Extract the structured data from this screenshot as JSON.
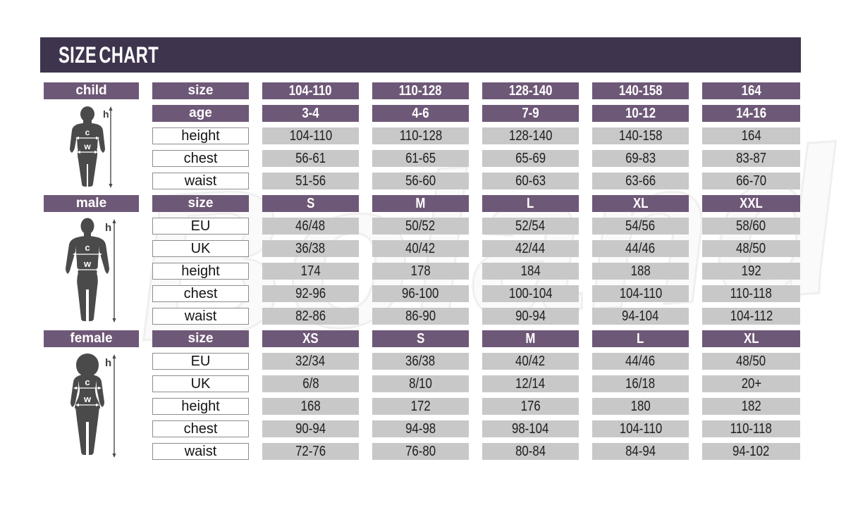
{
  "title": "SIZE CHART",
  "watermark": "Boland",
  "colors": {
    "title_bar": "#3f344e",
    "header_purple": "#6e5877",
    "cell_gray": "#c9c8c8",
    "cell_white_border": "#8d8d8d",
    "silhouette": "#4a4a4a",
    "page_background": "#ffffff",
    "text_dark": "#1e1e1e",
    "text_light": "#ffffff"
  },
  "chart_data": [
    {
      "type": "table",
      "section": "child",
      "figure": {
        "type": "child-silhouette",
        "annotations": {
          "height": "h",
          "chest": "c",
          "waist": "w"
        }
      },
      "rows": [
        {
          "label": "size",
          "style": "header",
          "values": [
            "104-110",
            "110-128",
            "128-140",
            "140-158",
            "164"
          ]
        },
        {
          "label": "age",
          "style": "header",
          "values": [
            "3-4",
            "4-6",
            "7-9",
            "10-12",
            "14-16"
          ]
        },
        {
          "label": "height",
          "style": "data",
          "values": [
            "104-110",
            "110-128",
            "128-140",
            "140-158",
            "164"
          ]
        },
        {
          "label": "chest",
          "style": "data",
          "values": [
            "56-61",
            "61-65",
            "65-69",
            "69-83",
            "83-87"
          ]
        },
        {
          "label": "waist",
          "style": "data",
          "values": [
            "51-56",
            "56-60",
            "60-63",
            "63-66",
            "66-70"
          ]
        }
      ]
    },
    {
      "type": "table",
      "section": "male",
      "figure": {
        "type": "male-silhouette",
        "annotations": {
          "height": "h",
          "chest": "c",
          "waist": "w"
        }
      },
      "rows": [
        {
          "label": "size",
          "style": "header",
          "values": [
            "S",
            "M",
            "L",
            "XL",
            "XXL"
          ]
        },
        {
          "label": "EU",
          "style": "data",
          "values": [
            "46/48",
            "50/52",
            "52/54",
            "54/56",
            "58/60"
          ]
        },
        {
          "label": "UK",
          "style": "data",
          "values": [
            "36/38",
            "40/42",
            "42/44",
            "44/46",
            "48/50"
          ]
        },
        {
          "label": "height",
          "style": "data",
          "values": [
            "174",
            "178",
            "184",
            "188",
            "192"
          ]
        },
        {
          "label": "chest",
          "style": "data",
          "values": [
            "92-96",
            "96-100",
            "100-104",
            "104-110",
            "110-118"
          ]
        },
        {
          "label": "waist",
          "style": "data",
          "values": [
            "82-86",
            "86-90",
            "90-94",
            "94-104",
            "104-112"
          ]
        }
      ]
    },
    {
      "type": "table",
      "section": "female",
      "figure": {
        "type": "female-silhouette",
        "annotations": {
          "height": "h",
          "chest": "c",
          "waist": "w"
        }
      },
      "rows": [
        {
          "label": "size",
          "style": "header",
          "values": [
            "XS",
            "S",
            "M",
            "L",
            "XL"
          ]
        },
        {
          "label": "EU",
          "style": "data",
          "values": [
            "32/34",
            "36/38",
            "40/42",
            "44/46",
            "48/50"
          ]
        },
        {
          "label": "UK",
          "style": "data",
          "values": [
            "6/8",
            "8/10",
            "12/14",
            "16/18",
            "20+"
          ]
        },
        {
          "label": "height",
          "style": "data",
          "values": [
            "168",
            "172",
            "176",
            "180",
            "182"
          ]
        },
        {
          "label": "chest",
          "style": "data",
          "values": [
            "90-94",
            "94-98",
            "98-104",
            "104-110",
            "110-118"
          ]
        },
        {
          "label": "waist",
          "style": "data",
          "values": [
            "72-76",
            "76-80",
            "80-84",
            "84-94",
            "94-102"
          ]
        }
      ]
    }
  ]
}
